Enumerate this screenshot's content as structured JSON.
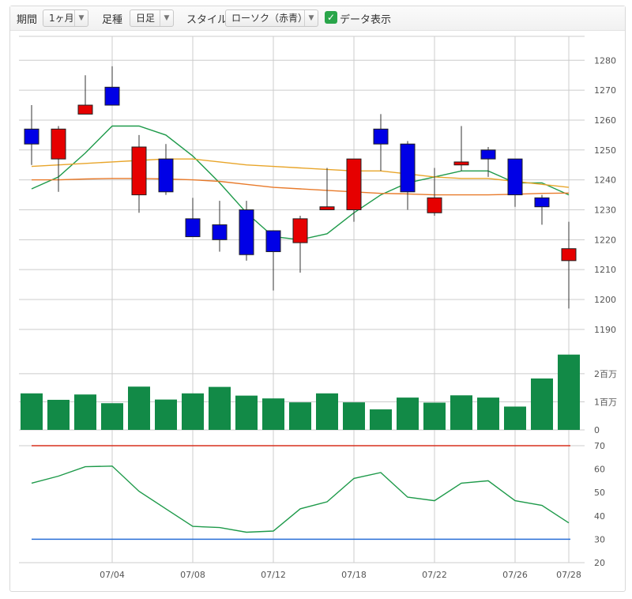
{
  "toolbar": {
    "period_label": "期間",
    "period_value": "1ヶ月",
    "candle_label": "足種",
    "candle_value": "日足",
    "style_label": "スタイル",
    "style_value": "ローソク（赤青）",
    "data_display_label": "データ表示",
    "data_display_checked": true
  },
  "colors": {
    "up": "#e60000",
    "down": "#0000e6",
    "volume": "#128a47",
    "ma_short": "#1e9a4a",
    "ma_mid": "#e8a52a",
    "ma_long": "#e87a2a",
    "rsi_line": "#1e9a4a",
    "rsi_upper": "#d7301f",
    "rsi_lower": "#2a6fd6",
    "grid": "#cccccc"
  },
  "chart_data": [
    {
      "type": "candlestick",
      "yticks": [
        1190,
        1200,
        1210,
        1220,
        1230,
        1240,
        1250,
        1260,
        1270,
        1280
      ],
      "ylim": [
        1186,
        1288
      ],
      "xticks": [
        {
          "index": 3,
          "label": "07/04"
        },
        {
          "index": 6,
          "label": "07/08"
        },
        {
          "index": 9,
          "label": "07/12"
        },
        {
          "index": 12,
          "label": "07/18"
        },
        {
          "index": 15,
          "label": "07/22"
        },
        {
          "index": 18,
          "label": "07/26"
        },
        {
          "index": 20,
          "label": "07/28"
        }
      ],
      "candles": [
        {
          "open": 1257,
          "high": 1265,
          "low": 1245,
          "close": 1252
        },
        {
          "open": 1247,
          "high": 1258,
          "low": 1236,
          "close": 1257
        },
        {
          "open": 1262,
          "high": 1275,
          "low": 1262,
          "close": 1265
        },
        {
          "open": 1271,
          "high": 1278,
          "low": 1265,
          "close": 1265
        },
        {
          "open": 1235,
          "high": 1255,
          "low": 1229,
          "close": 1251
        },
        {
          "open": 1247,
          "high": 1252,
          "low": 1235,
          "close": 1236
        },
        {
          "open": 1227,
          "high": 1234,
          "low": 1221,
          "close": 1221
        },
        {
          "open": 1225,
          "high": 1233,
          "low": 1216,
          "close": 1220
        },
        {
          "open": 1230,
          "high": 1233,
          "low": 1213,
          "close": 1215
        },
        {
          "open": 1223,
          "high": 1223,
          "low": 1203,
          "close": 1216
        },
        {
          "open": 1219,
          "high": 1228,
          "low": 1209,
          "close": 1227
        },
        {
          "open": 1230,
          "high": 1244,
          "low": 1230,
          "close": 1231
        },
        {
          "open": 1230,
          "high": 1247,
          "low": 1226,
          "close": 1247
        },
        {
          "open": 1257,
          "high": 1262,
          "low": 1243,
          "close": 1252
        },
        {
          "open": 1252,
          "high": 1253,
          "low": 1230,
          "close": 1236
        },
        {
          "open": 1229,
          "high": 1244,
          "low": 1228,
          "close": 1234
        },
        {
          "open": 1245,
          "high": 1258,
          "low": 1243,
          "close": 1246
        },
        {
          "open": 1250,
          "high": 1251,
          "low": 1241,
          "close": 1247
        },
        {
          "open": 1247,
          "high": 1247,
          "low": 1231,
          "close": 1235
        },
        {
          "open": 1234,
          "high": 1235,
          "low": 1225,
          "close": 1231
        },
        {
          "open": 1213,
          "high": 1226,
          "low": 1197,
          "close": 1217
        }
      ],
      "moving_averages": [
        {
          "color_key": "ma_short",
          "values": [
            1237,
            1241,
            1249,
            1258,
            1258,
            1255,
            1248,
            1239,
            1229,
            1221,
            1220,
            1222,
            1229,
            1235,
            1239,
            1241,
            1243,
            1243,
            1239,
            1239,
            1235
          ]
        },
        {
          "color_key": "ma_mid",
          "values": [
            1244.5,
            1245,
            1245.5,
            1246,
            1246.5,
            1247,
            1247,
            1246,
            1245,
            1244.5,
            1244,
            1243.5,
            1243,
            1243,
            1242,
            1241,
            1240.5,
            1240.5,
            1239.5,
            1238.5,
            1237.5
          ]
        },
        {
          "color_key": "ma_long",
          "values": [
            1240,
            1240,
            1240.3,
            1240.5,
            1240.5,
            1240.3,
            1240,
            1239.5,
            1238.5,
            1237.5,
            1237,
            1236.5,
            1236,
            1235.5,
            1235.3,
            1235,
            1235,
            1235,
            1235.2,
            1235.5,
            1235.6
          ]
        }
      ]
    },
    {
      "type": "bar",
      "yticks": [
        {
          "value": 0,
          "label": "0"
        },
        {
          "value": 1000000,
          "label": "1百万"
        },
        {
          "value": 2000000,
          "label": "2百万"
        }
      ],
      "ylim": [
        0,
        2700000
      ],
      "values": [
        1300000,
        1070000,
        1260000,
        950000,
        1540000,
        1080000,
        1300000,
        1530000,
        1220000,
        1120000,
        980000,
        1300000,
        980000,
        730000,
        1150000,
        970000,
        1230000,
        1150000,
        830000,
        1830000,
        2680000
      ]
    },
    {
      "type": "line",
      "yticks": [
        20,
        30,
        40,
        50,
        60,
        70
      ],
      "ylim": [
        20,
        70
      ],
      "upper_line": 70,
      "lower_line": 30,
      "values": [
        54,
        57,
        61,
        61.3,
        50.5,
        43,
        35.5,
        35,
        33,
        33.5,
        43,
        46,
        56,
        58.5,
        48,
        46.5,
        54,
        55,
        46.5,
        44.5,
        37
      ]
    }
  ]
}
